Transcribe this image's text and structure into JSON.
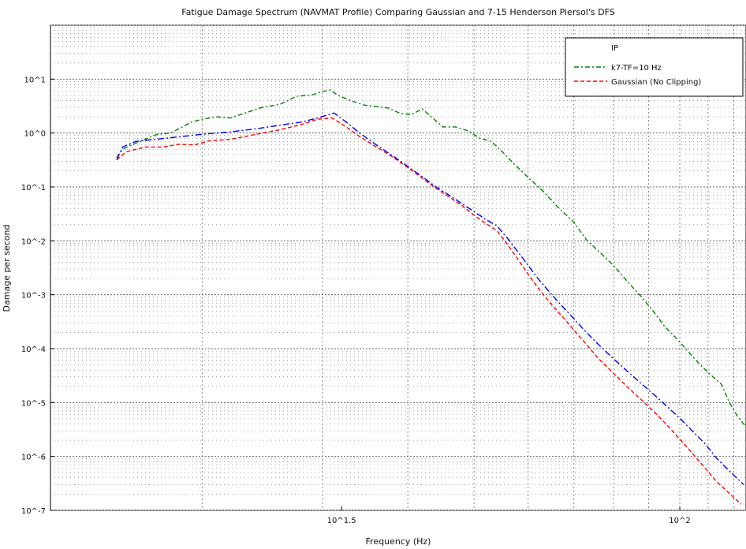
{
  "chart_data": {
    "type": "line",
    "title": "Fatigue Damage Spectrum (NAVMAT Profile) Comparing Gaussian and 7-15 Henderson Piersol's DFS",
    "xlabel": "Frequency (Hz)",
    "ylabel": "Damage per second",
    "xscale": "log",
    "yscale": "log",
    "xlim": [
      12,
      125
    ],
    "ylim": [
      1e-07,
      100
    ],
    "grid": true,
    "legend_position": "top-right",
    "legend_header": "IP",
    "x_ticks": [
      {
        "value": 32,
        "label": "10^1.5"
      },
      {
        "value": 100,
        "label": "10^2"
      }
    ],
    "y_ticks": [
      {
        "value": 10,
        "label": "10^1"
      },
      {
        "value": 1,
        "label": "10^0"
      },
      {
        "value": 0.1,
        "label": "10^-1"
      },
      {
        "value": 0.01,
        "label": "10^-2"
      },
      {
        "value": 0.001,
        "label": "10^-3"
      },
      {
        "value": 0.0001,
        "label": "10^-4"
      },
      {
        "value": 1e-05,
        "label": "10^-5"
      },
      {
        "value": 1e-06,
        "label": "10^-6"
      },
      {
        "value": 1e-07,
        "label": "10^-7"
      }
    ],
    "series": [
      {
        "name": "k7-TF=10 Hz",
        "color": "#008000",
        "dash": "6,3,2,3",
        "points": [
          [
            15,
            0.35
          ],
          [
            15.3,
            0.5
          ],
          [
            16,
            0.65
          ],
          [
            17.2,
            0.95
          ],
          [
            18,
            1.0
          ],
          [
            19.3,
            1.6
          ],
          [
            20,
            1.8
          ],
          [
            21,
            2.0
          ],
          [
            22,
            1.9
          ],
          [
            23,
            2.3
          ],
          [
            24.5,
            3.0
          ],
          [
            26,
            3.4
          ],
          [
            27.5,
            4.8
          ],
          [
            29,
            5.1
          ],
          [
            30,
            5.9
          ],
          [
            30.8,
            6.3
          ],
          [
            31.6,
            5.0
          ],
          [
            33,
            4.0
          ],
          [
            34.5,
            3.3
          ],
          [
            36,
            3.1
          ],
          [
            37.5,
            2.9
          ],
          [
            39,
            2.3
          ],
          [
            40.5,
            2.2
          ],
          [
            42,
            2.8
          ],
          [
            43.5,
            1.9
          ],
          [
            45,
            1.3
          ],
          [
            47,
            1.3
          ],
          [
            49,
            1.1
          ],
          [
            51,
            0.8
          ],
          [
            53,
            0.7
          ],
          [
            55,
            0.45
          ],
          [
            57,
            0.28
          ],
          [
            60,
            0.15
          ],
          [
            63,
            0.085
          ],
          [
            66,
            0.045
          ],
          [
            70,
            0.022
          ],
          [
            73,
            0.0105
          ],
          [
            76,
            0.0065
          ],
          [
            80,
            0.0035
          ],
          [
            84,
            0.0017
          ],
          [
            88,
            0.0009
          ],
          [
            92,
            0.00045
          ],
          [
            95,
            0.00026
          ],
          [
            98,
            0.000175
          ],
          [
            102,
            0.0001
          ],
          [
            106,
            5.8e-05
          ],
          [
            110,
            3.6e-05
          ],
          [
            115,
            2.2e-05
          ],
          [
            118,
            1.05e-05
          ],
          [
            121,
            6e-06
          ],
          [
            125,
            3.5e-06
          ]
        ]
      },
      {
        "name": "Gaussian (No Clipping)",
        "color": "#ff0000",
        "dash": "5,3",
        "points": [
          [
            15,
            0.32
          ],
          [
            15.5,
            0.45
          ],
          [
            16.5,
            0.55
          ],
          [
            17.5,
            0.55
          ],
          [
            18.5,
            0.62
          ],
          [
            19.5,
            0.6
          ],
          [
            20.5,
            0.72
          ],
          [
            22,
            0.76
          ],
          [
            24,
            0.95
          ],
          [
            26,
            1.15
          ],
          [
            28,
            1.45
          ],
          [
            29.5,
            1.8
          ],
          [
            31,
            1.9
          ],
          [
            32.5,
            1.3
          ],
          [
            34,
            0.86
          ],
          [
            36,
            0.55
          ],
          [
            38,
            0.36
          ],
          [
            40,
            0.23
          ],
          [
            42,
            0.145
          ],
          [
            44,
            0.094
          ],
          [
            46,
            0.065
          ],
          [
            48,
            0.045
          ],
          [
            50,
            0.03
          ],
          [
            52,
            0.021
          ],
          [
            54,
            0.0155
          ],
          [
            56,
            0.0085
          ],
          [
            58,
            0.0045
          ],
          [
            60,
            0.0024
          ],
          [
            62,
            0.00135
          ],
          [
            64,
            0.00082
          ],
          [
            66,
            0.00052
          ],
          [
            68,
            0.00034
          ],
          [
            70,
            0.00022
          ],
          [
            73,
            0.00012
          ],
          [
            76,
            6.6e-05
          ],
          [
            80,
            3.5e-05
          ],
          [
            84,
            1.9e-05
          ],
          [
            88,
            1.1e-05
          ],
          [
            92,
            6.5e-06
          ],
          [
            96,
            3.7e-06
          ],
          [
            100,
            2.1e-06
          ],
          [
            104,
            1.2e-06
          ],
          [
            109,
            6e-07
          ],
          [
            113,
            3.5e-07
          ],
          [
            118,
            2.1e-07
          ],
          [
            123,
            1.3e-07
          ]
        ]
      },
      {
        "name": "",
        "color": "#0000ff",
        "dash": "8,3,2,3",
        "points": [
          [
            15,
            0.32
          ],
          [
            15.3,
            0.55
          ],
          [
            16,
            0.7
          ],
          [
            17,
            0.76
          ],
          [
            18.5,
            0.85
          ],
          [
            20,
            0.95
          ],
          [
            22,
            1.05
          ],
          [
            24,
            1.2
          ],
          [
            26,
            1.4
          ],
          [
            28,
            1.6
          ],
          [
            29.5,
            1.9
          ],
          [
            31.2,
            2.35
          ],
          [
            32.5,
            1.6
          ],
          [
            34,
            1.0
          ],
          [
            36,
            0.6
          ],
          [
            38,
            0.38
          ],
          [
            40,
            0.24
          ],
          [
            42,
            0.155
          ],
          [
            44,
            0.1
          ],
          [
            46,
            0.07
          ],
          [
            48,
            0.049
          ],
          [
            50,
            0.035
          ],
          [
            52,
            0.025
          ],
          [
            54,
            0.019
          ],
          [
            56,
            0.011
          ],
          [
            58,
            0.0062
          ],
          [
            60,
            0.0035
          ],
          [
            62,
            0.002
          ],
          [
            64,
            0.00125
          ],
          [
            66,
            0.0008
          ],
          [
            68,
            0.00053
          ],
          [
            70,
            0.00036
          ],
          [
            73,
            0.0002
          ],
          [
            76,
            0.00012
          ],
          [
            80,
            6.5e-05
          ],
          [
            84,
            3.7e-05
          ],
          [
            88,
            2.2e-05
          ],
          [
            92,
            1.35e-05
          ],
          [
            96,
            8.3e-06
          ],
          [
            100,
            5.1e-06
          ],
          [
            104,
            3.1e-06
          ],
          [
            109,
            1.7e-06
          ],
          [
            113,
            9.5e-07
          ],
          [
            118,
            5.5e-07
          ],
          [
            124,
            3e-07
          ]
        ]
      }
    ]
  }
}
